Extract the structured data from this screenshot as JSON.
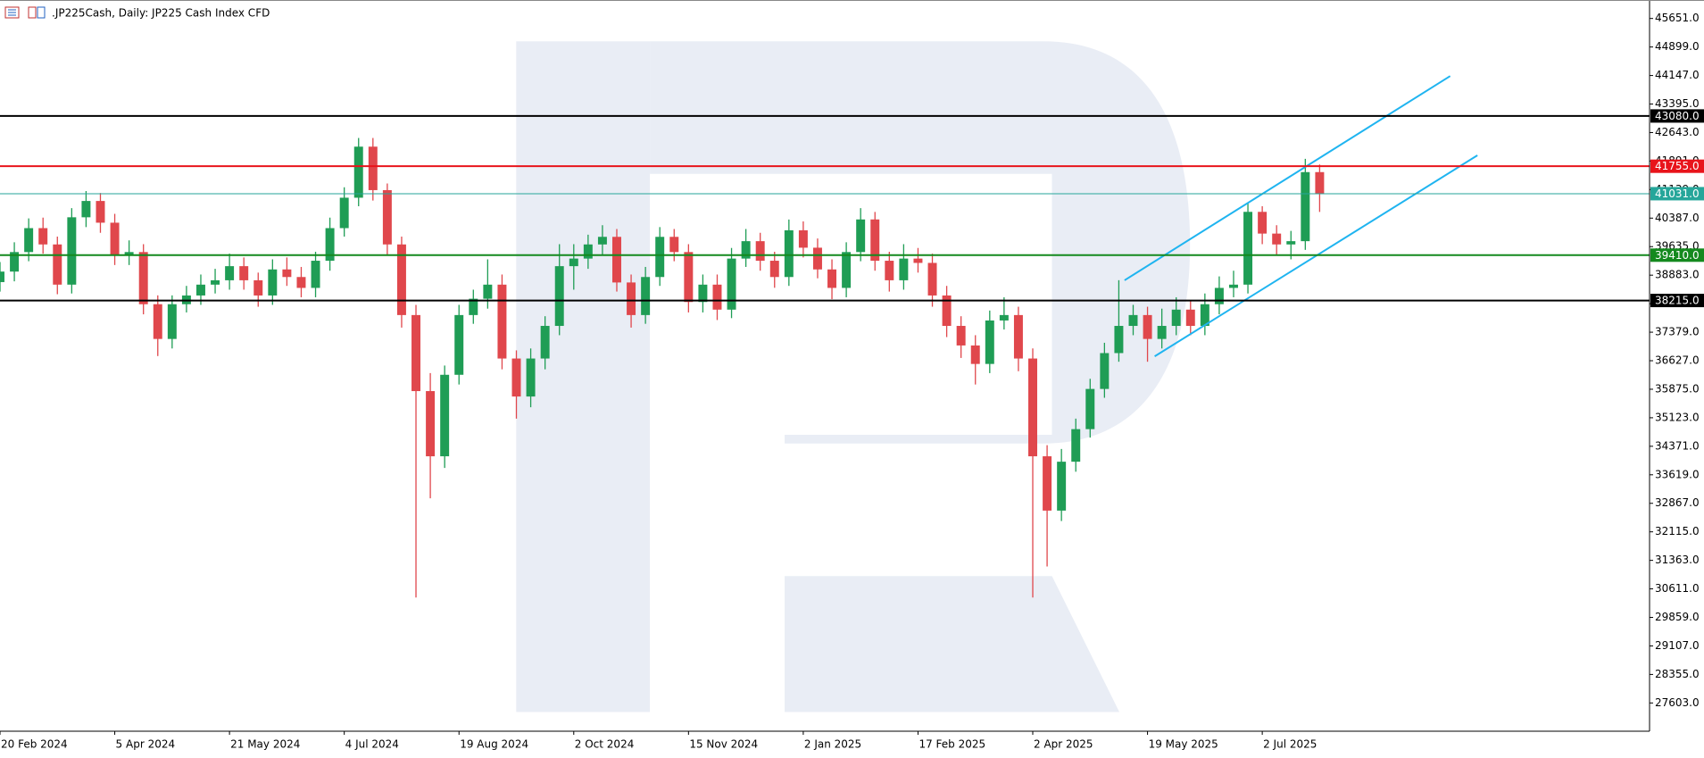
{
  "chart_data": {
    "type": "candlestick",
    "title": ".JP225Cash, Daily:  JP225 Cash Index CFD",
    "up_color": "#1f9d55",
    "down_color": "#e0474c",
    "x": [
      0,
      1,
      2,
      3,
      4,
      5,
      6,
      7,
      8,
      9,
      10,
      11,
      12,
      13,
      14,
      15,
      16,
      17,
      18,
      19,
      20,
      21,
      22,
      23,
      24,
      25,
      26,
      27,
      28,
      29,
      30,
      31,
      32,
      33,
      34,
      35,
      36,
      37,
      38,
      39,
      40,
      41,
      42,
      43,
      44,
      45,
      46,
      47,
      48,
      49,
      50,
      51,
      52,
      53,
      54,
      55,
      56,
      57,
      58,
      59,
      60,
      61,
      62,
      63,
      64,
      65,
      66,
      67,
      68,
      69,
      70,
      71,
      72,
      73,
      74,
      75,
      76,
      77,
      78,
      79,
      80,
      81,
      82,
      83,
      84,
      85,
      86,
      87,
      88,
      89,
      90,
      91,
      92
    ],
    "open": [
      38700,
      38977,
      39492,
      40123,
      39693,
      38633,
      40409,
      40839,
      40266,
      39406,
      39492,
      38117,
      37201,
      38117,
      38347,
      38633,
      38748,
      39120,
      38748,
      38347,
      39034,
      38834,
      38547,
      39263,
      40123,
      40925,
      42271,
      41125,
      39693,
      37831,
      35826,
      34107,
      36256,
      37831,
      38261,
      38633,
      36685,
      35683,
      36685,
      37545,
      39120,
      39320,
      39693,
      39893,
      38690,
      37831,
      38834,
      39893,
      39492,
      38175,
      38633,
      37974,
      39320,
      39779,
      39263,
      38834,
      40066,
      39607,
      39034,
      38547,
      39492,
      40352,
      39263,
      38748,
      39320,
      39206,
      38347,
      37545,
      37029,
      36542,
      37688,
      37831,
      36685,
      34107,
      32675,
      33964,
      34823,
      35883,
      36828,
      37545,
      37831,
      37201,
      37545,
      37974,
      37545,
      38117,
      38547,
      38633,
      40552,
      39979,
      39693,
      39779,
      41600
    ],
    "high": [
      39230,
      39750,
      40380,
      40400,
      39900,
      40650,
      41100,
      41050,
      40500,
      39800,
      39700,
      38350,
      38350,
      38600,
      38900,
      39050,
      39450,
      39350,
      38950,
      39300,
      39350,
      39100,
      39500,
      40400,
      41200,
      42500,
      42500,
      41300,
      39900,
      38100,
      36300,
      36500,
      38100,
      38500,
      39300,
      38900,
      36900,
      36950,
      37800,
      39700,
      39700,
      39950,
      40200,
      40100,
      38900,
      39100,
      40150,
      40100,
      39700,
      38900,
      38900,
      39600,
      40100,
      40000,
      39500,
      40350,
      40300,
      39850,
      39300,
      39750,
      40650,
      40550,
      39500,
      39700,
      39600,
      39450,
      38600,
      37800,
      37300,
      37950,
      38300,
      38050,
      36950,
      34400,
      34300,
      35100,
      36150,
      37100,
      38750,
      38100,
      38050,
      38000,
      38300,
      38200,
      38400,
      38850,
      39000,
      40800,
      40700,
      40200,
      40050,
      41950,
      41800
    ],
    "low": [
      38450,
      38720,
      39250,
      39450,
      38380,
      38400,
      40150,
      40000,
      39150,
      39150,
      37850,
      36750,
      36950,
      37900,
      38100,
      38400,
      38500,
      38500,
      38050,
      38100,
      38600,
      38300,
      38300,
      39000,
      39900,
      40700,
      40850,
      39400,
      37500,
      30383,
      33000,
      33800,
      36000,
      37600,
      38000,
      36400,
      35100,
      35400,
      36400,
      37300,
      38500,
      39050,
      39400,
      38450,
      37500,
      37600,
      38600,
      39250,
      37900,
      37900,
      37700,
      37750,
      39100,
      39000,
      38550,
      38600,
      39350,
      38800,
      38250,
      38300,
      39250,
      39000,
      38450,
      38500,
      38950,
      38050,
      37250,
      36700,
      36000,
      36300,
      37450,
      36350,
      30383,
      31200,
      32400,
      33700,
      34600,
      35650,
      36600,
      37300,
      36600,
      36950,
      37300,
      37300,
      37300,
      37850,
      38300,
      38400,
      39700,
      39400,
      39300,
      39550,
      40550
    ],
    "close": [
      38977,
      39492,
      40123,
      39693,
      38633,
      40409,
      40839,
      40266,
      39406,
      39492,
      38117,
      37201,
      38117,
      38347,
      38633,
      38748,
      39120,
      38748,
      38347,
      39034,
      38834,
      38547,
      39263,
      40123,
      40925,
      42271,
      41125,
      39693,
      37831,
      35826,
      34107,
      36256,
      37831,
      38261,
      38633,
      36685,
      35683,
      36685,
      37545,
      39120,
      39320,
      39693,
      39893,
      38690,
      37831,
      38834,
      39893,
      39492,
      38175,
      38633,
      37974,
      39320,
      39779,
      39263,
      38834,
      40066,
      39607,
      39034,
      38547,
      39492,
      40352,
      39263,
      38748,
      39320,
      39206,
      38347,
      37545,
      37029,
      36542,
      37688,
      37831,
      36685,
      34107,
      32675,
      33964,
      34823,
      35883,
      36828,
      37545,
      37831,
      37201,
      37545,
      37974,
      37545,
      38117,
      38547,
      38633,
      40552,
      39979,
      39693,
      39779,
      41600,
      41031
    ],
    "xlim": [
      0,
      115
    ],
    "xticks": [
      {
        "value": 0,
        "label": "20 Feb 2024"
      },
      {
        "value": 8,
        "label": "5 Apr 2024"
      },
      {
        "value": 16,
        "label": "21 May 2024"
      },
      {
        "value": 24,
        "label": "4 Jul 2024"
      },
      {
        "value": 32,
        "label": "19 Aug 2024"
      },
      {
        "value": 40,
        "label": "2 Oct 2024"
      },
      {
        "value": 48,
        "label": "15 Nov 2024"
      },
      {
        "value": 56,
        "label": "2 Jan 2025"
      },
      {
        "value": 64,
        "label": "17 Feb 2025"
      },
      {
        "value": 72,
        "label": "2 Apr 2025"
      },
      {
        "value": 80,
        "label": "19 May 2025"
      },
      {
        "value": 88,
        "label": "2 Jul 2025"
      }
    ],
    "ylim": [
      26858,
      46138
    ],
    "yticks": [
      {
        "value": 45651,
        "label": "45651.0"
      },
      {
        "value": 44899,
        "label": "44899.0"
      },
      {
        "value": 44147,
        "label": "44147.0"
      },
      {
        "value": 43395,
        "label": "43395.0"
      },
      {
        "value": 42643,
        "label": "42643.0"
      },
      {
        "value": 41891,
        "label": "41891.0"
      },
      {
        "value": 41139,
        "label": "41139.0"
      },
      {
        "value": 40387,
        "label": "40387.0"
      },
      {
        "value": 39635,
        "label": "39635.0"
      },
      {
        "value": 38883,
        "label": "38883.0"
      },
      {
        "value": 38131,
        "label": "38131.0"
      },
      {
        "value": 37379,
        "label": "37379.0"
      },
      {
        "value": 36627,
        "label": "36627.0"
      },
      {
        "value": 35875,
        "label": "35875.0"
      },
      {
        "value": 35123,
        "label": "35123.0"
      },
      {
        "value": 34371,
        "label": "34371.0"
      },
      {
        "value": 33619,
        "label": "33619.0"
      },
      {
        "value": 32867,
        "label": "32867.0"
      },
      {
        "value": 32115,
        "label": "32115.0"
      },
      {
        "value": 31363,
        "label": "31363.0"
      },
      {
        "value": 30611,
        "label": "30611.0"
      },
      {
        "value": 29859,
        "label": "29859.0"
      },
      {
        "value": 29107,
        "label": "29107.0"
      },
      {
        "value": 28355,
        "label": "28355.0"
      },
      {
        "value": 27603,
        "label": "27603.0"
      }
    ],
    "levels": [
      {
        "value": 43080,
        "label": "43080.0",
        "color": "#000000",
        "width": 2
      },
      {
        "value": 41755,
        "label": "41755.0",
        "color": "#e8141b",
        "width": 2
      },
      {
        "value": 41031,
        "label": "41031.0",
        "color": "#26a69a",
        "width": 1
      },
      {
        "value": 39410,
        "label": "39410.0",
        "color": "#14891e",
        "width": 2
      },
      {
        "value": 38215,
        "label": "38215.0",
        "color": "#000000",
        "width": 2
      }
    ],
    "trendline_color": "#1fb4f0",
    "trendlines": [
      {
        "x": [
          78.4,
          101.1
        ],
        "values": [
          38748,
          44133
        ]
      },
      {
        "x": [
          80.5,
          103
        ],
        "values": [
          36742,
          42042
        ]
      }
    ]
  }
}
